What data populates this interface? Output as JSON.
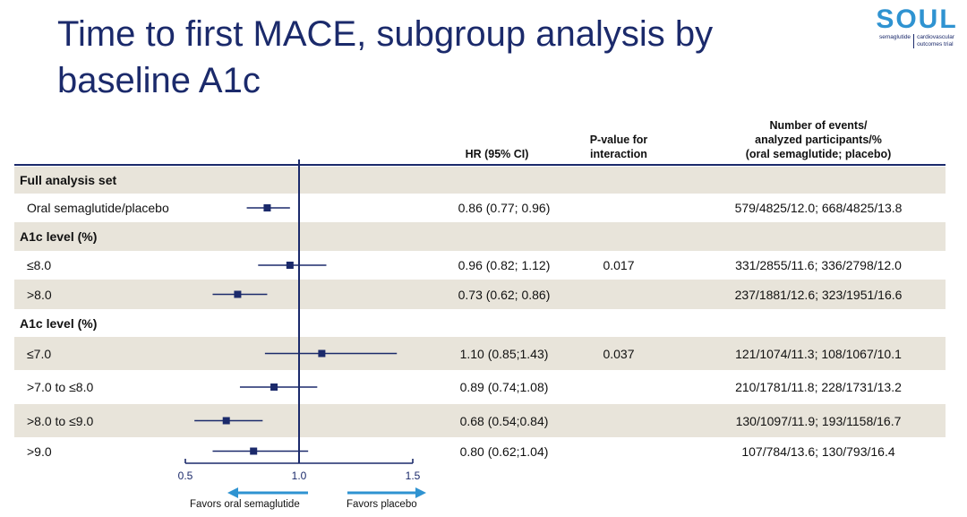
{
  "title": "Time to first MACE, subgroup analysis by baseline A1c",
  "logo": {
    "word": "SOUL",
    "tag_left": [
      "semaglutide"
    ],
    "tag_right": [
      "cardiovascular",
      "outcomes trial"
    ]
  },
  "headers": {
    "hr": "HR (95% CI)",
    "pvalue": [
      "P-value for",
      "interaction"
    ],
    "events": [
      "Number of events/",
      "analyzed participants/%",
      "(oral semaglutide; placebo)"
    ]
  },
  "favors": {
    "left": "Favors oral semaglutide",
    "right": "Favors placebo"
  },
  "colors": {
    "title": "#1b2a6b",
    "marker": "#1b2a6b",
    "arrow": "#2f93d1",
    "shade": "#e8e4da"
  },
  "chart_data": {
    "type": "forest",
    "xlim": [
      0.5,
      1.5
    ],
    "ticks": [
      {
        "value": 0.5,
        "label": "0.5"
      },
      {
        "value": 1.0,
        "label": "1.0"
      },
      {
        "value": 1.5,
        "label": "1.5"
      }
    ],
    "reference_line": 1.0,
    "rows": [
      {
        "kind": "section",
        "label": "Full analysis set",
        "shaded": true
      },
      {
        "kind": "data",
        "label": "Oral semaglutide/placebo",
        "hr": 0.86,
        "lo": 0.77,
        "hi": 0.96,
        "hr_text": "0.86 (0.77; 0.96)",
        "p": "",
        "events": "579/4825/12.0; 668/4825/13.8",
        "shaded": false
      },
      {
        "kind": "section",
        "label": "A1c level (%)",
        "shaded": true
      },
      {
        "kind": "data",
        "label": "≤8.0",
        "hr": 0.96,
        "lo": 0.82,
        "hi": 1.12,
        "hr_text": "0.96 (0.82; 1.12)",
        "p": "0.017",
        "events": "331/2855/11.6; 336/2798/12.0",
        "shaded": false
      },
      {
        "kind": "data",
        "label": ">8.0",
        "hr": 0.73,
        "lo": 0.62,
        "hi": 0.86,
        "hr_text": "0.73 (0.62; 0.86)",
        "p": "",
        "events": "237/1881/12.6; 323/1951/16.6",
        "shaded": true
      },
      {
        "kind": "section",
        "label": "A1c level (%)",
        "shaded": false
      },
      {
        "kind": "data",
        "label": "≤7.0",
        "hr": 1.1,
        "lo": 0.85,
        "hi": 1.43,
        "hr_text": "1.10 (0.85;1.43)",
        "p": "0.037",
        "events": "121/1074/11.3; 108/1067/10.1",
        "shaded": true
      },
      {
        "kind": "data",
        "label": ">7.0 to ≤8.0",
        "hr": 0.89,
        "lo": 0.74,
        "hi": 1.08,
        "hr_text": "0.89 (0.74;1.08)",
        "p": "",
        "events": "210/1781/11.8; 228/1731/13.2",
        "shaded": false
      },
      {
        "kind": "data",
        "label": ">8.0 to ≤9.0",
        "hr": 0.68,
        "lo": 0.54,
        "hi": 0.84,
        "hr_text": "0.68 (0.54;0.84)",
        "p": "",
        "events": "130/1097/11.9; 193/1158/16.7",
        "shaded": true
      },
      {
        "kind": "data",
        "label": ">9.0",
        "hr": 0.8,
        "lo": 0.62,
        "hi": 1.04,
        "hr_text": "0.80 (0.62;1.04)",
        "p": "",
        "events": "107/784/13.6; 130/793/16.4",
        "shaded": false
      }
    ]
  }
}
